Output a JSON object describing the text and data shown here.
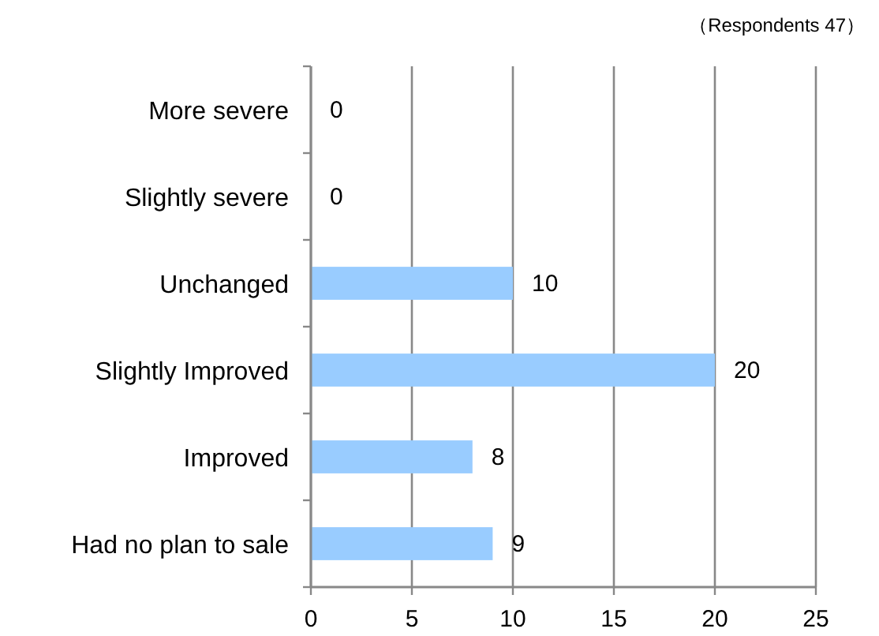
{
  "chart_data": {
    "type": "bar",
    "orientation": "horizontal",
    "categories": [
      "More severe",
      "Slightly severe",
      "Unchanged",
      "Slightly Improved",
      "Improved",
      "Had no plan to sale"
    ],
    "series": [
      {
        "color": "#99ccff",
        "values": [
          0,
          0,
          10,
          20,
          8,
          9
        ]
      }
    ],
    "xlim": [
      0,
      25
    ],
    "xticks": [
      0,
      5,
      10,
      15,
      20,
      25
    ],
    "grid": "x",
    "data_labels": true,
    "annotations": [
      "（Respondents 47）"
    ]
  }
}
